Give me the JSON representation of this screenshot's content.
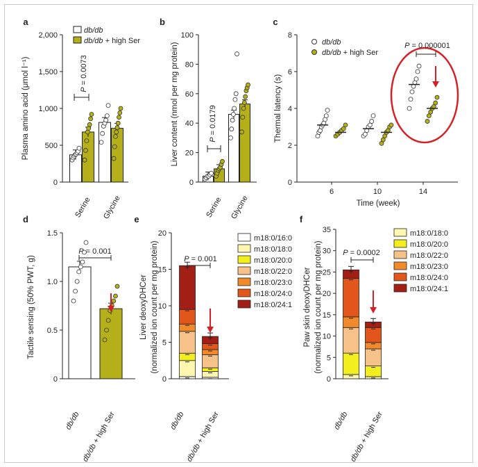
{
  "colors": {
    "white_bar": "#ffffff",
    "olive": "#b5b01a",
    "arrow": "#d42027",
    "circle": "#d42027",
    "axis": "#222222"
  },
  "chart_data": [
    {
      "panel": "a",
      "type": "bar",
      "ylabel": "Plasma amino acid (μmol l⁻¹)",
      "ylim": [
        0,
        2000
      ],
      "yticks": [
        "0",
        "500",
        "1,000",
        "1,500",
        "2,000"
      ],
      "categories": [
        "Serine",
        "Glycine"
      ],
      "series": [
        {
          "name": "db/db",
          "values": [
            370,
            810
          ],
          "points": [
            [
              300,
              330,
              350,
              370,
              380,
              400,
              420,
              460
            ],
            [
              540,
              660,
              760,
              800,
              840,
              900,
              1040
            ]
          ]
        },
        {
          "name": "db/db + high Ser",
          "values": [
            680,
            730
          ],
          "points": [
            [
              300,
              430,
              560,
              680,
              730,
              780,
              860,
              920
            ],
            [
              320,
              480,
              620,
              680,
              740,
              800,
              880,
              940,
              1000
            ]
          ]
        }
      ],
      "annotations": [
        {
          "text": "P = 0.0073"
        }
      ]
    },
    {
      "panel": "b",
      "type": "bar",
      "ylabel": "Liver content (nmol per mg protein)",
      "ylim": [
        0,
        100
      ],
      "yticks": [
        "0",
        "20",
        "40",
        "60",
        "80",
        "100"
      ],
      "categories": [
        "Serine",
        "Glycine"
      ],
      "series": [
        {
          "name": "db/db",
          "values": [
            4,
            46
          ],
          "points": [
            [
              2,
              3,
              4,
              4,
              5,
              6
            ],
            [
              30,
              36,
              42,
              46,
              50,
              56,
              60,
              87
            ]
          ]
        },
        {
          "name": "db/db + high Ser",
          "values": [
            9,
            53
          ],
          "points": [
            [
              4,
              6,
              8,
              9,
              10,
              12,
              14
            ],
            [
              34,
              44,
              50,
              54,
              58,
              62,
              64,
              66
            ]
          ]
        }
      ],
      "annotations": [
        {
          "text": "P = 0.0179"
        }
      ]
    },
    {
      "panel": "c",
      "type": "scatter",
      "xlabel": "Time (week)",
      "ylabel": "Thermal latency (s)",
      "ylim": [
        0,
        8
      ],
      "yticks": [
        "0",
        "2",
        "4",
        "6",
        "8"
      ],
      "categories": [
        "6",
        "10",
        "14"
      ],
      "series": [
        {
          "name": "db/db",
          "means": [
            3.1,
            2.9,
            5.3
          ],
          "points": [
            [
              2.5,
              2.7,
              2.8,
              3.0,
              3.1,
              3.2,
              3.4,
              3.6,
              3.9
            ],
            [
              2.5,
              2.6,
              2.8,
              3.0,
              3.1,
              3.3,
              3.6
            ],
            [
              4.0,
              4.5,
              4.9,
              5.2,
              5.4,
              5.6,
              6.0,
              6.3
            ]
          ]
        },
        {
          "name": "db/db + high Ser",
          "means": [
            2.7,
            2.7,
            4.0
          ],
          "points": [
            [
              2.5,
              2.6,
              2.7,
              2.8,
              2.9,
              3.1
            ],
            [
              2.1,
              2.3,
              2.5,
              2.7,
              2.8,
              3.0,
              3.1
            ],
            [
              3.3,
              3.6,
              3.8,
              4.0,
              4.1,
              4.3,
              4.6
            ]
          ]
        }
      ],
      "annotations": [
        {
          "text": "P = 0.000001"
        }
      ]
    },
    {
      "panel": "d",
      "type": "bar",
      "ylabel": "Tactile sensing (50% PWT, g)",
      "ylim": [
        0,
        1.5
      ],
      "yticks": [
        "0",
        "0.5",
        "1.0",
        "1.5"
      ],
      "categories": [
        "db/db",
        "db/db + high Ser"
      ],
      "values": [
        1.15,
        0.72
      ],
      "points": [
        [
          0.8,
          0.9,
          1.0,
          1.1,
          1.15,
          1.2,
          1.3,
          1.4
        ],
        [
          0.4,
          0.5,
          0.6,
          0.7,
          0.75,
          0.8,
          0.85,
          0.95
        ]
      ],
      "annotations": [
        {
          "text": "P = 0.001"
        }
      ]
    },
    {
      "panel": "e",
      "type": "bar",
      "stacked": true,
      "ylabel": "Liver deoxyDHCer (normalized ion count per mg protein)",
      "ylim": [
        0,
        20
      ],
      "yticks": [
        "0",
        "5",
        "10",
        "15",
        "20"
      ],
      "categories": [
        "db/db",
        "db/db + high Ser"
      ],
      "legend": [
        "m18:0/16:0",
        "m18:0/18:0",
        "m18:0/20:0",
        "m18:0/22:0",
        "m18:0/23:0",
        "m18:0/24:0",
        "m18:0/24:1"
      ],
      "legend_colors": [
        "#ffffff",
        "#fff7b0",
        "#f3ef1f",
        "#f7c28a",
        "#f28a2b",
        "#e2561c",
        "#a31e14"
      ],
      "stack_values": [
        [
          0.3,
          2.2,
          1.0,
          3.0,
          1.0,
          2.0,
          6.0
        ],
        [
          0.2,
          0.8,
          0.5,
          1.8,
          0.7,
          0.8,
          1.0
        ]
      ],
      "totals": [
        15.5,
        5.8
      ],
      "annotations": [
        {
          "text": "P = 0.001"
        }
      ]
    },
    {
      "panel": "f",
      "type": "bar",
      "stacked": true,
      "ylabel": "Paw skin deoxyDHCer (normalized ion count per mg protein)",
      "ylim": [
        0,
        35
      ],
      "yticks": [
        "0",
        "5",
        "10",
        "15",
        "20",
        "25",
        "30",
        "35"
      ],
      "categories": [
        "db/db",
        "db/db + high Ser"
      ],
      "legend": [
        "m18:0/18:0",
        "m18:0/20:0",
        "m18:0/22:0",
        "m18:0/23:0",
        "m18:0/24:0",
        "m18:0/24:1"
      ],
      "legend_colors": [
        "#fff7b0",
        "#f3ef1f",
        "#f7c28a",
        "#f28a2b",
        "#e2561c",
        "#a31e14"
      ],
      "stack_values": [
        [
          1.0,
          5.0,
          6.0,
          2.5,
          9.0,
          2.0
        ],
        [
          0.5,
          2.5,
          4.0,
          1.5,
          3.5,
          1.3
        ]
      ],
      "totals": [
        25.5,
        13.3
      ],
      "annotations": [
        {
          "text": "P = 0.0002"
        }
      ]
    }
  ]
}
